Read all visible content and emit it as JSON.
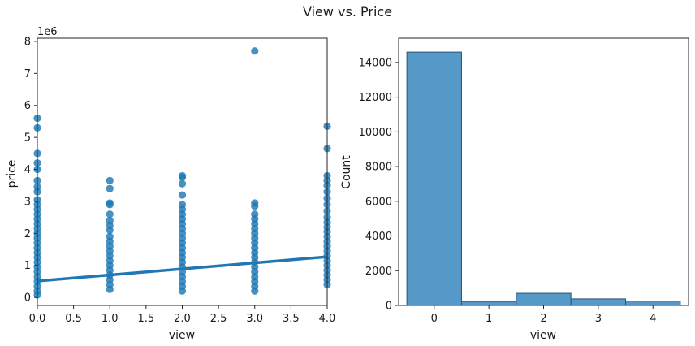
{
  "figure": {
    "title": "View vs. Price"
  },
  "chart_data": [
    {
      "type": "scatter",
      "title": "",
      "xlabel": "view",
      "ylabel": "price",
      "offset_label": "1e6",
      "xlim": [
        0.0,
        4.0
      ],
      "ylim": [
        -0.25,
        8.1
      ],
      "x_ticks": [
        "0.0",
        "0.5",
        "1.0",
        "1.5",
        "2.0",
        "2.5",
        "3.0",
        "3.5",
        "4.0"
      ],
      "y_ticks": [
        "0",
        "1",
        "2",
        "3",
        "4",
        "5",
        "6",
        "7",
        "8"
      ],
      "color": "#1f77b4",
      "points": [
        {
          "x": 0,
          "y": 0.08
        },
        {
          "x": 0,
          "y": 0.2
        },
        {
          "x": 0,
          "y": 0.35
        },
        {
          "x": 0,
          "y": 0.5
        },
        {
          "x": 0,
          "y": 0.65
        },
        {
          "x": 0,
          "y": 0.8
        },
        {
          "x": 0,
          "y": 0.95
        },
        {
          "x": 0,
          "y": 1.1
        },
        {
          "x": 0,
          "y": 1.25
        },
        {
          "x": 0,
          "y": 1.4
        },
        {
          "x": 0,
          "y": 1.55
        },
        {
          "x": 0,
          "y": 1.7
        },
        {
          "x": 0,
          "y": 1.85
        },
        {
          "x": 0,
          "y": 2.0
        },
        {
          "x": 0,
          "y": 2.15
        },
        {
          "x": 0,
          "y": 2.3
        },
        {
          "x": 0,
          "y": 2.45
        },
        {
          "x": 0,
          "y": 2.6
        },
        {
          "x": 0,
          "y": 2.75
        },
        {
          "x": 0,
          "y": 2.9
        },
        {
          "x": 0,
          "y": 3.05
        },
        {
          "x": 0,
          "y": 3.3
        },
        {
          "x": 0,
          "y": 3.45
        },
        {
          "x": 0,
          "y": 3.65
        },
        {
          "x": 0,
          "y": 4.0
        },
        {
          "x": 0,
          "y": 4.2
        },
        {
          "x": 0,
          "y": 4.5
        },
        {
          "x": 0,
          "y": 5.3
        },
        {
          "x": 0,
          "y": 5.6
        },
        {
          "x": 1,
          "y": 0.25
        },
        {
          "x": 1,
          "y": 0.4
        },
        {
          "x": 1,
          "y": 0.55
        },
        {
          "x": 1,
          "y": 0.7
        },
        {
          "x": 1,
          "y": 0.85
        },
        {
          "x": 1,
          "y": 1.0
        },
        {
          "x": 1,
          "y": 1.15
        },
        {
          "x": 1,
          "y": 1.3
        },
        {
          "x": 1,
          "y": 1.45
        },
        {
          "x": 1,
          "y": 1.6
        },
        {
          "x": 1,
          "y": 1.75
        },
        {
          "x": 1,
          "y": 1.9
        },
        {
          "x": 1,
          "y": 2.1
        },
        {
          "x": 1,
          "y": 2.25
        },
        {
          "x": 1,
          "y": 2.4
        },
        {
          "x": 1,
          "y": 2.6
        },
        {
          "x": 1,
          "y": 2.9
        },
        {
          "x": 1,
          "y": 2.95
        },
        {
          "x": 1,
          "y": 3.4
        },
        {
          "x": 1,
          "y": 3.65
        },
        {
          "x": 2,
          "y": 0.2
        },
        {
          "x": 2,
          "y": 0.35
        },
        {
          "x": 2,
          "y": 0.5
        },
        {
          "x": 2,
          "y": 0.65
        },
        {
          "x": 2,
          "y": 0.8
        },
        {
          "x": 2,
          "y": 0.95
        },
        {
          "x": 2,
          "y": 1.1
        },
        {
          "x": 2,
          "y": 1.25
        },
        {
          "x": 2,
          "y": 1.4
        },
        {
          "x": 2,
          "y": 1.55
        },
        {
          "x": 2,
          "y": 1.7
        },
        {
          "x": 2,
          "y": 1.85
        },
        {
          "x": 2,
          "y": 2.0
        },
        {
          "x": 2,
          "y": 2.15
        },
        {
          "x": 2,
          "y": 2.3
        },
        {
          "x": 2,
          "y": 2.45
        },
        {
          "x": 2,
          "y": 2.6
        },
        {
          "x": 2,
          "y": 2.75
        },
        {
          "x": 2,
          "y": 2.9
        },
        {
          "x": 2,
          "y": 3.2
        },
        {
          "x": 2,
          "y": 3.55
        },
        {
          "x": 2,
          "y": 3.75
        },
        {
          "x": 2,
          "y": 3.8
        },
        {
          "x": 3,
          "y": 0.2
        },
        {
          "x": 3,
          "y": 0.35
        },
        {
          "x": 3,
          "y": 0.5
        },
        {
          "x": 3,
          "y": 0.65
        },
        {
          "x": 3,
          "y": 0.8
        },
        {
          "x": 3,
          "y": 0.95
        },
        {
          "x": 3,
          "y": 1.1
        },
        {
          "x": 3,
          "y": 1.25
        },
        {
          "x": 3,
          "y": 1.4
        },
        {
          "x": 3,
          "y": 1.55
        },
        {
          "x": 3,
          "y": 1.7
        },
        {
          "x": 3,
          "y": 1.85
        },
        {
          "x": 3,
          "y": 2.0
        },
        {
          "x": 3,
          "y": 2.15
        },
        {
          "x": 3,
          "y": 2.3
        },
        {
          "x": 3,
          "y": 2.45
        },
        {
          "x": 3,
          "y": 2.6
        },
        {
          "x": 3,
          "y": 2.85
        },
        {
          "x": 3,
          "y": 2.95
        },
        {
          "x": 3,
          "y": 7.7
        },
        {
          "x": 4,
          "y": 0.4
        },
        {
          "x": 4,
          "y": 0.55
        },
        {
          "x": 4,
          "y": 0.7
        },
        {
          "x": 4,
          "y": 0.85
        },
        {
          "x": 4,
          "y": 1.0
        },
        {
          "x": 4,
          "y": 1.15
        },
        {
          "x": 4,
          "y": 1.3
        },
        {
          "x": 4,
          "y": 1.45
        },
        {
          "x": 4,
          "y": 1.6
        },
        {
          "x": 4,
          "y": 1.75
        },
        {
          "x": 4,
          "y": 1.9
        },
        {
          "x": 4,
          "y": 2.05
        },
        {
          "x": 4,
          "y": 2.2
        },
        {
          "x": 4,
          "y": 2.35
        },
        {
          "x": 4,
          "y": 2.5
        },
        {
          "x": 4,
          "y": 2.7
        },
        {
          "x": 4,
          "y": 2.9
        },
        {
          "x": 4,
          "y": 3.1
        },
        {
          "x": 4,
          "y": 3.3
        },
        {
          "x": 4,
          "y": 3.5
        },
        {
          "x": 4,
          "y": 3.65
        },
        {
          "x": 4,
          "y": 3.8
        },
        {
          "x": 4,
          "y": 4.65
        },
        {
          "x": 4,
          "y": 5.35
        }
      ],
      "regression_line": {
        "x": [
          0,
          4
        ],
        "y": [
          0.51,
          1.27
        ]
      }
    },
    {
      "type": "bar",
      "title": "",
      "xlabel": "view",
      "ylabel": "Count",
      "categories": [
        "0",
        "1",
        "2",
        "3",
        "4"
      ],
      "values": [
        14600,
        230,
        700,
        380,
        250
      ],
      "xlim": [
        -0.65,
        4.65
      ],
      "ylim": [
        0,
        15400
      ],
      "y_ticks": [
        "0",
        "2000",
        "4000",
        "6000",
        "8000",
        "10000",
        "12000",
        "14000"
      ],
      "color": "#5599c8",
      "edge_color": "#2e5470"
    }
  ]
}
